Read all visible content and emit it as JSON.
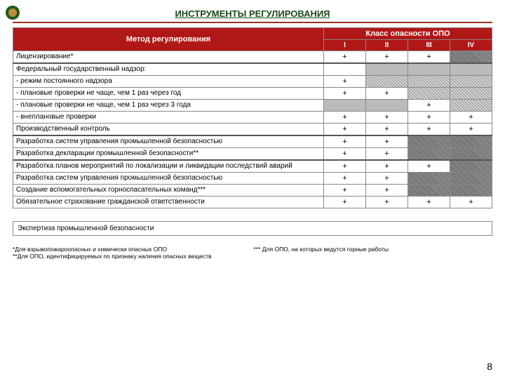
{
  "title": "ИНСТРУМЕНТЫ РЕГУЛИРОВАНИЯ",
  "header": {
    "method": "Метод регулирования",
    "hazard": "Класс опасности ОПО",
    "cols": [
      "I",
      "II",
      "III",
      "IV"
    ]
  },
  "rows": [
    {
      "label": "Лицензирование*",
      "cells": [
        {
          "v": "+",
          "s": ""
        },
        {
          "v": "+",
          "s": ""
        },
        {
          "v": "+",
          "s": ""
        },
        {
          "v": "",
          "s": "hatch-d"
        }
      ],
      "sep": true
    },
    {
      "label": "Федеральный государственный надзор:",
      "cells": [
        {
          "v": "",
          "s": ""
        },
        {
          "v": "",
          "s": "solid-g"
        },
        {
          "v": "",
          "s": "solid-g"
        },
        {
          "v": "",
          "s": "solid-g"
        }
      ]
    },
    {
      "label": " - режим постоянного надзора",
      "cells": [
        {
          "v": "+",
          "s": ""
        },
        {
          "v": "",
          "s": "hatch-g"
        },
        {
          "v": "",
          "s": "hatch-g"
        },
        {
          "v": "",
          "s": "hatch-g"
        }
      ]
    },
    {
      "label": " - плановые проверки не чаще, чем 1 раз через год",
      "cells": [
        {
          "v": "+",
          "s": ""
        },
        {
          "v": "+",
          "s": ""
        },
        {
          "v": "",
          "s": "hatch-g"
        },
        {
          "v": "",
          "s": "hatch-g"
        }
      ]
    },
    {
      "label": " - плановые проверки не чаще, чем 1 раз через 3 года",
      "cells": [
        {
          "v": "",
          "s": "solid-g"
        },
        {
          "v": "",
          "s": "solid-g"
        },
        {
          "v": "+",
          "s": ""
        },
        {
          "v": "",
          "s": "hatch-g"
        }
      ]
    },
    {
      "label": " - внеплановые проверки",
      "cells": [
        {
          "v": "+",
          "s": ""
        },
        {
          "v": "+",
          "s": ""
        },
        {
          "v": "+",
          "s": ""
        },
        {
          "v": "+",
          "s": ""
        }
      ]
    },
    {
      "label": "Производственный контроль",
      "cells": [
        {
          "v": "+",
          "s": ""
        },
        {
          "v": "+",
          "s": ""
        },
        {
          "v": "+",
          "s": ""
        },
        {
          "v": "+",
          "s": ""
        }
      ],
      "sep": true
    },
    {
      "label": "Разработка систем управления промышленной безопасностью",
      "cells": [
        {
          "v": "+",
          "s": ""
        },
        {
          "v": "+",
          "s": ""
        },
        {
          "v": "",
          "s": "hatch-d"
        },
        {
          "v": "",
          "s": "hatch-d"
        }
      ]
    },
    {
      "label": "Разработка декларации промышленной безопасности**",
      "cells": [
        {
          "v": "+",
          "s": ""
        },
        {
          "v": "+",
          "s": ""
        },
        {
          "v": "",
          "s": "hatch-d"
        },
        {
          "v": "",
          "s": "hatch-d"
        }
      ],
      "sep": true
    },
    {
      "label": "Разработка планов мероприятий по локализации и ликвидации последствий аварий",
      "cells": [
        {
          "v": "+",
          "s": ""
        },
        {
          "v": "+",
          "s": ""
        },
        {
          "v": "+",
          "s": ""
        },
        {
          "v": "",
          "s": "hatch-d"
        }
      ]
    },
    {
      "label": "Разработка систем управления промышленной безопасностью",
      "cells": [
        {
          "v": "+",
          "s": ""
        },
        {
          "v": "+",
          "s": ""
        },
        {
          "v": "",
          "s": "hatch-d"
        },
        {
          "v": "",
          "s": "hatch-d"
        }
      ]
    },
    {
      "label": "Создание вспомогательных горноспасательных команд***",
      "cells": [
        {
          "v": "+",
          "s": ""
        },
        {
          "v": "+",
          "s": ""
        },
        {
          "v": "",
          "s": "hatch-d"
        },
        {
          "v": "",
          "s": "hatch-d"
        }
      ]
    },
    {
      "label": "Обязательное страхование гражданской ответственности",
      "cells": [
        {
          "v": "+",
          "s": ""
        },
        {
          "v": "+",
          "s": ""
        },
        {
          "v": "+",
          "s": ""
        },
        {
          "v": "+",
          "s": ""
        }
      ]
    }
  ],
  "footer_row": "Экспертиза промышленной безопасности",
  "notes_left1": "*Для взрывопожароопасных и химически опасных ОПО",
  "notes_left2": "**Для ОПО, идентифицируемых по признаку наличия опасных веществ",
  "notes_right": "*** Для ОПО, на которых ведутся горные работы",
  "pagenum": "8"
}
